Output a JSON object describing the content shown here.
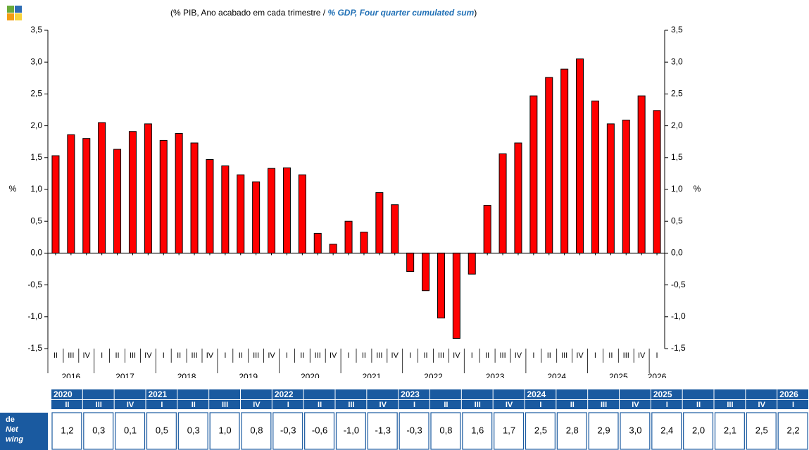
{
  "chart_data": {
    "type": "bar",
    "title_pt": "(% PIB, Ano acabado em cada trimestre /",
    "title_en": "% GDP, Four quarter cumulated sum",
    "title_close": ")",
    "y_label": "%",
    "color": "#ff0000",
    "categories": [
      "II",
      "III",
      "IV",
      "I",
      "II",
      "III",
      "IV",
      "I",
      "II",
      "III",
      "IV",
      "I",
      "II",
      "III",
      "IV",
      "I",
      "II",
      "III",
      "IV",
      "I",
      "II",
      "III",
      "IV",
      "I",
      "II",
      "III",
      "IV",
      "I",
      "II",
      "III",
      "IV",
      "I",
      "II",
      "III",
      "IV",
      "I",
      "II",
      "III",
      "IV",
      "I"
    ],
    "years": [
      "2016",
      "2017",
      "2018",
      "2019",
      "2020",
      "2021",
      "2022",
      "2023",
      "2024",
      "2025",
      "2026"
    ],
    "values": [
      1.53,
      1.86,
      1.8,
      2.05,
      1.63,
      1.91,
      2.03,
      1.77,
      1.88,
      1.73,
      1.47,
      1.37,
      1.23,
      1.12,
      1.33,
      1.34,
      1.23,
      0.31,
      0.14,
      0.5,
      0.33,
      0.95,
      0.76,
      -0.29,
      -0.59,
      -1.02,
      -1.34,
      -0.33,
      0.75,
      1.56,
      1.73,
      2.47,
      2.76,
      2.89,
      3.05,
      2.39,
      2.03,
      2.09,
      2.47,
      2.24
    ],
    "ylim": [
      -1.5,
      3.5
    ],
    "yticks": [
      {
        "value": -1.5,
        "label": "-1,5"
      },
      {
        "value": -1.0,
        "label": "-1,0"
      },
      {
        "value": -0.5,
        "label": "-0,5"
      },
      {
        "value": 0,
        "label": "0,0"
      },
      {
        "value": 0.5,
        "label": "0,5"
      },
      {
        "value": 1.0,
        "label": "1,0"
      },
      {
        "value": 1.5,
        "label": "1,5"
      },
      {
        "value": 2.0,
        "label": "2,0"
      },
      {
        "value": 2.5,
        "label": "2,5"
      },
      {
        "value": 3.0,
        "label": "3,0"
      },
      {
        "value": 3.5,
        "label": "3,5"
      }
    ]
  },
  "table": {
    "row_label": [
      "de",
      "Net",
      "wing"
    ],
    "years": [
      "2020",
      "2021",
      "2022",
      "2023",
      "2024",
      "2025",
      "2026"
    ],
    "quarters": [
      "II",
      "III",
      "IV",
      "I",
      "II",
      "III",
      "IV",
      "I",
      "II",
      "III",
      "IV",
      "I",
      "II",
      "III",
      "IV",
      "I",
      "II",
      "III",
      "IV",
      "I",
      "II",
      "III",
      "IV",
      "I"
    ],
    "values": [
      "1,2",
      "0,3",
      "0,1",
      "0,5",
      "0,3",
      "1,0",
      "0,8",
      "-0,3",
      "-0,6",
      "-1,0",
      "-1,3",
      "-0,3",
      "0,8",
      "1,6",
      "1,7",
      "2,5",
      "2,8",
      "2,9",
      "3,0",
      "2,4",
      "2,0",
      "2,1",
      "2,5",
      "2,2"
    ]
  }
}
